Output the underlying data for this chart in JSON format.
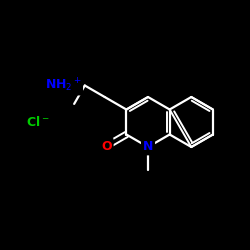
{
  "bg": "#000000",
  "bond_color": "#ffffff",
  "nh2_color": "#0000ff",
  "o_color": "#ff0000",
  "n_color": "#0000ff",
  "cl_color": "#00cc00",
  "figsize": [
    2.5,
    2.5
  ],
  "dpi": 100,
  "bond_lw": 1.6,
  "font_size": 9,
  "lc": [
    148,
    128
  ],
  "bl": 25
}
